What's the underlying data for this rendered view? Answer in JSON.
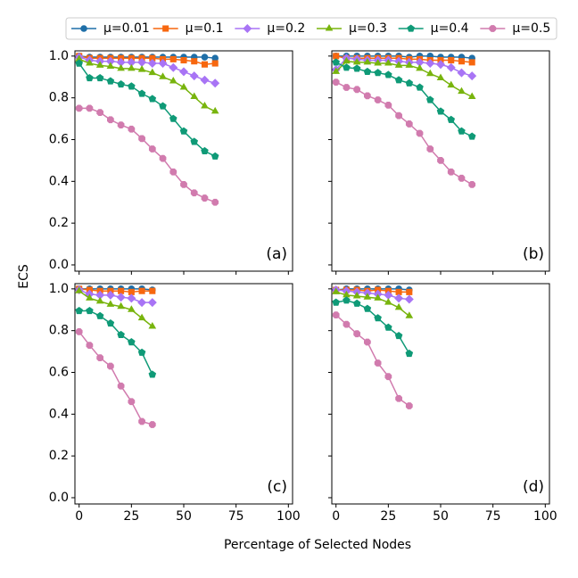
{
  "xlabel": "Percentage of Selected Nodes",
  "ylabel": "ECS",
  "chart_data": [
    {
      "type": "line",
      "label": "(a)",
      "legend": "top",
      "x": [
        0,
        5,
        10,
        15,
        20,
        25,
        30,
        35,
        40,
        45,
        50,
        55,
        60,
        65
      ],
      "xlim": [
        -2,
        102
      ],
      "xticks": [
        0,
        25,
        50,
        75,
        100
      ],
      "ylim": [
        -0.03,
        1.025
      ],
      "yticks": [
        {
          "value": 0,
          "label": "0.0"
        },
        0.2,
        0.4,
        0.6,
        0.8,
        {
          "value": 1,
          "label": "1.0"
        }
      ],
      "series": [
        {
          "name": "μ=0.01",
          "color": "#1f6fa8",
          "marker": "circle",
          "values": [
            1.0,
            0.995,
            0.995,
            0.995,
            0.995,
            0.995,
            0.995,
            0.995,
            0.995,
            0.995,
            0.995,
            0.995,
            0.995,
            0.99
          ]
        },
        {
          "name": "μ=0.1",
          "color": "#f7670f",
          "marker": "square",
          "values": [
            1.0,
            0.99,
            0.99,
            0.99,
            0.99,
            0.99,
            0.99,
            0.99,
            0.985,
            0.985,
            0.98,
            0.975,
            0.96,
            0.965
          ]
        },
        {
          "name": "μ=0.2",
          "color": "#a874f5",
          "marker": "diamond",
          "values": [
            0.995,
            0.98,
            0.975,
            0.975,
            0.97,
            0.97,
            0.97,
            0.965,
            0.965,
            0.945,
            0.925,
            0.905,
            0.885,
            0.87
          ]
        },
        {
          "name": "μ=0.3",
          "color": "#78b40d",
          "marker": "triangle",
          "values": [
            0.985,
            0.965,
            0.955,
            0.95,
            0.94,
            0.94,
            0.935,
            0.92,
            0.9,
            0.88,
            0.85,
            0.805,
            0.76,
            0.735
          ]
        },
        {
          "name": "μ=0.4",
          "color": "#0f9a77",
          "marker": "pentagon",
          "values": [
            0.965,
            0.895,
            0.895,
            0.88,
            0.865,
            0.855,
            0.82,
            0.795,
            0.76,
            0.7,
            0.64,
            0.59,
            0.545,
            0.52
          ]
        },
        {
          "name": "μ=0.5",
          "color": "#d17bae",
          "marker": "hexagon",
          "values": [
            0.75,
            0.75,
            0.73,
            0.695,
            0.67,
            0.65,
            0.605,
            0.555,
            0.51,
            0.445,
            0.385,
            0.345,
            0.32,
            0.3
          ]
        }
      ]
    },
    {
      "type": "line",
      "label": "(b)",
      "x": [
        0,
        5,
        10,
        15,
        20,
        25,
        30,
        35,
        40,
        45,
        50,
        55,
        60,
        65
      ],
      "xlim": [
        -2,
        102
      ],
      "xticks": [
        0,
        25,
        50,
        75,
        100
      ],
      "ylim": [
        -0.03,
        1.025
      ],
      "yticks": [
        0,
        0.2,
        0.4,
        0.6,
        0.8,
        1
      ],
      "series": [
        {
          "color": "#1f6fa8",
          "marker": "circle",
          "values": [
            1.0,
            1.0,
            1.0,
            1.0,
            1.0,
            1.0,
            1.0,
            0.995,
            1.0,
            1.0,
            0.995,
            0.995,
            0.995,
            0.99
          ]
        },
        {
          "color": "#f7670f",
          "marker": "square",
          "values": [
            1.0,
            0.99,
            0.99,
            0.99,
            0.99,
            0.99,
            0.99,
            0.985,
            0.985,
            0.98,
            0.98,
            0.98,
            0.975,
            0.97
          ]
        },
        {
          "color": "#a874f5",
          "marker": "diamond",
          "values": [
            0.935,
            0.99,
            0.985,
            0.98,
            0.98,
            0.98,
            0.975,
            0.97,
            0.97,
            0.965,
            0.96,
            0.945,
            0.92,
            0.905
          ]
        },
        {
          "color": "#78b40d",
          "marker": "triangle",
          "values": [
            0.925,
            0.975,
            0.97,
            0.97,
            0.965,
            0.965,
            0.955,
            0.955,
            0.94,
            0.915,
            0.895,
            0.86,
            0.83,
            0.805
          ]
        },
        {
          "color": "#0f9a77",
          "marker": "pentagon",
          "values": [
            0.97,
            0.945,
            0.94,
            0.925,
            0.92,
            0.91,
            0.885,
            0.87,
            0.85,
            0.79,
            0.735,
            0.695,
            0.64,
            0.615
          ]
        },
        {
          "color": "#d17bae",
          "marker": "hexagon",
          "values": [
            0.875,
            0.85,
            0.84,
            0.81,
            0.79,
            0.765,
            0.715,
            0.675,
            0.63,
            0.555,
            0.5,
            0.445,
            0.415,
            0.385
          ]
        }
      ]
    },
    {
      "type": "line",
      "label": "(c)",
      "x": [
        0,
        5,
        10,
        15,
        20,
        25,
        30,
        35
      ],
      "xlim": [
        -2,
        102
      ],
      "xticks": [
        0,
        25,
        50,
        75,
        100
      ],
      "ylim": [
        -0.03,
        1.025
      ],
      "yticks": [
        {
          "value": 0,
          "label": "0.0"
        },
        0.2,
        0.4,
        0.6,
        0.8,
        {
          "value": 1,
          "label": "1.0"
        }
      ],
      "series": [
        {
          "color": "#1f6fa8",
          "marker": "circle",
          "values": [
            1.0,
            1.0,
            1.0,
            1.0,
            1.0,
            1.0,
            1.0,
            0.995
          ]
        },
        {
          "color": "#f7670f",
          "marker": "square",
          "values": [
            1.0,
            0.995,
            0.99,
            0.99,
            0.99,
            0.985,
            0.99,
            0.99
          ]
        },
        {
          "color": "#a874f5",
          "marker": "diamond",
          "values": [
            0.995,
            0.975,
            0.97,
            0.97,
            0.96,
            0.955,
            0.935,
            0.935
          ]
        },
        {
          "color": "#78b40d",
          "marker": "triangle",
          "values": [
            0.99,
            0.955,
            0.94,
            0.925,
            0.915,
            0.9,
            0.86,
            0.82
          ]
        },
        {
          "color": "#0f9a77",
          "marker": "pentagon",
          "values": [
            0.895,
            0.895,
            0.87,
            0.835,
            0.78,
            0.745,
            0.695,
            0.59
          ]
        },
        {
          "color": "#d17bae",
          "marker": "hexagon",
          "values": [
            0.795,
            0.73,
            0.67,
            0.63,
            0.535,
            0.46,
            0.365,
            0.35
          ]
        }
      ]
    },
    {
      "type": "line",
      "label": "(d)",
      "x": [
        0,
        5,
        10,
        15,
        20,
        25,
        30,
        35
      ],
      "xlim": [
        -2,
        102
      ],
      "xticks": [
        0,
        25,
        50,
        75,
        100
      ],
      "ylim": [
        -0.03,
        1.025
      ],
      "yticks": [
        0,
        0.2,
        0.4,
        0.6,
        0.8,
        1
      ],
      "series": [
        {
          "color": "#1f6fa8",
          "marker": "circle",
          "values": [
            0.995,
            1.0,
            1.0,
            1.0,
            1.0,
            1.0,
            1.0,
            0.995
          ]
        },
        {
          "color": "#f7670f",
          "marker": "square",
          "values": [
            0.995,
            0.995,
            0.995,
            0.99,
            0.995,
            0.99,
            0.985,
            0.985
          ]
        },
        {
          "color": "#a874f5",
          "marker": "diamond",
          "values": [
            0.995,
            0.99,
            0.985,
            0.98,
            0.975,
            0.97,
            0.955,
            0.95
          ]
        },
        {
          "color": "#78b40d",
          "marker": "triangle",
          "values": [
            0.985,
            0.97,
            0.965,
            0.96,
            0.955,
            0.935,
            0.91,
            0.87
          ]
        },
        {
          "color": "#0f9a77",
          "marker": "pentagon",
          "values": [
            0.935,
            0.945,
            0.93,
            0.905,
            0.86,
            0.815,
            0.775,
            0.69
          ]
        },
        {
          "color": "#d17bae",
          "marker": "hexagon",
          "values": [
            0.875,
            0.83,
            0.785,
            0.745,
            0.645,
            0.58,
            0.475,
            0.44
          ]
        }
      ]
    }
  ]
}
